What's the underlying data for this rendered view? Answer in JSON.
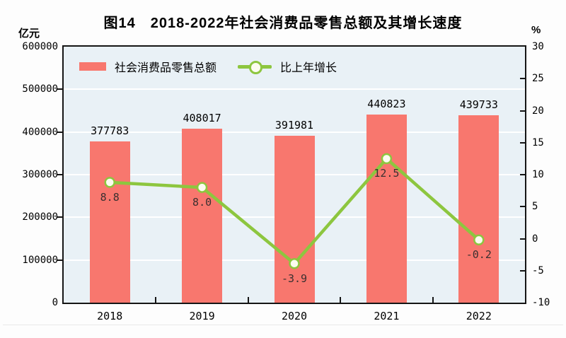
{
  "title": "图14　2018-2022年社会消费品零售总额及其增长速度",
  "left_axis": {
    "unit": "亿元",
    "min": 0,
    "max": 600000,
    "step": 100000
  },
  "right_axis": {
    "unit": "%",
    "min": -10,
    "max": 30,
    "step": 5
  },
  "legend": [
    {
      "label": "社会消费品零售总额"
    },
    {
      "label": "比上年增长"
    }
  ],
  "colors": {
    "bar": "#f8776e",
    "line": "#8dc63f",
    "marker_fill": "#fcfcf0",
    "plot_background": "#e9f1f6",
    "gridline": "#ffffff",
    "frame": "#151515"
  },
  "chart_data": {
    "type": "bar+line",
    "categories": [
      "2018",
      "2019",
      "2020",
      "2021",
      "2022"
    ],
    "series": [
      {
        "name": "社会消费品零售总额",
        "type": "bar",
        "axis": "left",
        "values": [
          377783,
          408017,
          391981,
          440823,
          439733
        ],
        "value_labels": [
          "377783",
          "408017",
          "391981",
          "440823",
          "439733"
        ]
      },
      {
        "name": "比上年增长",
        "type": "line",
        "axis": "right",
        "values": [
          8.8,
          8.0,
          -3.9,
          12.5,
          -0.2
        ],
        "value_labels": [
          "8.8",
          "8.0",
          "-3.9",
          "12.5",
          "-0.2"
        ]
      }
    ],
    "title": "图14　2018-2022年社会消费品零售总额及其增长速度",
    "ylabel_left": "亿元",
    "ylabel_right": "%",
    "ylim_left": [
      0,
      600000
    ],
    "ylim_right": [
      -10,
      30
    ],
    "grid": true,
    "legend_position": "top-left-inside"
  }
}
